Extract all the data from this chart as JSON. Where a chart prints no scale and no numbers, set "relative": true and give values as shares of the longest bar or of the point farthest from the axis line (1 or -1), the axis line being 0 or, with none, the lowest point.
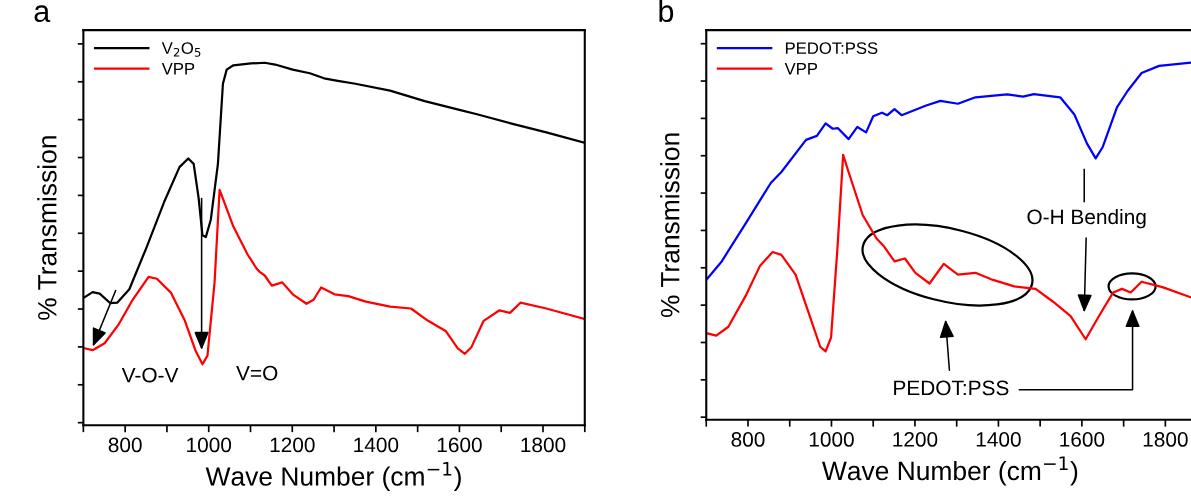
{
  "chart_data": [
    {
      "type": "line",
      "title": "a",
      "xlabel": "Wave Number (cm$^{−1}$)",
      "ylabel": "% Transmission",
      "relative": true,
      "xlim": [
        700,
        1900
      ],
      "xticks": [
        {
          "value": 700,
          "label": null
        },
        800,
        {
          "value": 900,
          "label": null
        },
        1000,
        {
          "value": 1100,
          "label": null
        },
        1200,
        {
          "value": 1300,
          "label": null
        },
        1400,
        {
          "value": 1500,
          "label": null
        },
        1600,
        {
          "value": 1700,
          "label": null
        },
        1800,
        {
          "value": 1900,
          "label": null
        }
      ],
      "legend": "top left",
      "grid": false,
      "series": [
        {
          "name": "V$_{2}$O$_{5}$",
          "color": "#000000",
          "x": [
            700,
            722,
            739,
            764,
            781,
            810,
            851,
            893,
            930,
            951,
            964,
            976,
            985,
            993,
            1005,
            1022,
            1034,
            1043,
            1059,
            1101,
            1134,
            1159,
            1201,
            1242,
            1276,
            1309,
            1351,
            1434,
            1517,
            1600,
            1642,
            1725,
            1808,
            1900
          ],
          "values": [
            0.351,
            0.367,
            0.363,
            0.337,
            0.338,
            0.375,
            0.49,
            0.615,
            0.712,
            0.736,
            0.721,
            0.625,
            0.524,
            0.519,
            0.567,
            0.721,
            0.942,
            0.981,
            0.993,
            0.998,
            1.0,
            0.995,
            0.981,
            0.971,
            0.957,
            0.95,
            0.942,
            0.923,
            0.894,
            0.87,
            0.858,
            0.832,
            0.808,
            0.779
          ]
        },
        {
          "name": "VPP",
          "color": "#ff0000",
          "x": [
            700,
            722,
            751,
            785,
            818,
            856,
            876,
            910,
            943,
            968,
            985,
            997,
            1014,
            1026,
            1034,
            1059,
            1093,
            1114,
            1122,
            1134,
            1151,
            1176,
            1201,
            1234,
            1251,
            1269,
            1301,
            1334,
            1376,
            1434,
            1484,
            1525,
            1567,
            1596,
            1613,
            1629,
            1658,
            1696,
            1721,
            1746,
            1808,
            1900
          ],
          "values": [
            0.213,
            0.207,
            0.226,
            0.279,
            0.346,
            0.409,
            0.404,
            0.365,
            0.288,
            0.207,
            0.168,
            0.192,
            0.394,
            0.649,
            0.625,
            0.548,
            0.471,
            0.433,
            0.423,
            0.413,
            0.385,
            0.394,
            0.361,
            0.335,
            0.346,
            0.38,
            0.361,
            0.356,
            0.341,
            0.327,
            0.322,
            0.288,
            0.26,
            0.212,
            0.197,
            0.216,
            0.288,
            0.317,
            0.31,
            0.338,
            0.322,
            0.293
          ]
        }
      ],
      "annotations": [
        {
          "text": "V-O-V",
          "x": 720,
          "y": 0.21
        },
        {
          "text": "V=O",
          "x": 983,
          "y": 0.2
        }
      ]
    },
    {
      "type": "line",
      "title": "b",
      "xlabel": "Wave Number (cm$^{−1}$)",
      "ylabel": "% Transmission",
      "relative": true,
      "xlim": [
        700,
        1870
      ],
      "xticks": [
        {
          "value": 700,
          "label": null
        },
        800,
        {
          "value": 900,
          "label": null
        },
        1000,
        {
          "value": 1100,
          "label": null
        },
        1200,
        {
          "value": 1300,
          "label": null
        },
        1400,
        {
          "value": 1500,
          "label": null
        },
        1600,
        {
          "value": 1700,
          "label": null
        },
        1800
      ],
      "legend": "top left",
      "grid": false,
      "series": [
        {
          "name": "PEDOT:PSS",
          "color": "#0000ff",
          "x": [
            700,
            736,
            796,
            855,
            880,
            939,
            965,
            986,
            1003,
            1015,
            1041,
            1062,
            1083,
            1100,
            1121,
            1134,
            1151,
            1168,
            1227,
            1261,
            1303,
            1345,
            1421,
            1459,
            1485,
            1548,
            1582,
            1612,
            1633,
            1650,
            1684,
            1709,
            1743,
            1785,
            1867
          ],
          "values": [
            0.391,
            0.441,
            0.552,
            0.663,
            0.693,
            0.783,
            0.794,
            0.829,
            0.814,
            0.816,
            0.785,
            0.819,
            0.804,
            0.849,
            0.859,
            0.852,
            0.869,
            0.852,
            0.879,
            0.892,
            0.884,
            0.902,
            0.91,
            0.904,
            0.911,
            0.902,
            0.854,
            0.773,
            0.731,
            0.763,
            0.874,
            0.919,
            0.97,
            0.99,
            1.0
          ]
        },
        {
          "name": "VPP",
          "color": "#ff0000",
          "x": [
            700,
            724,
            753,
            796,
            829,
            859,
            880,
            914,
            948,
            973,
            986,
            999,
            1015,
            1028,
            1041,
            1075,
            1108,
            1125,
            1151,
            1176,
            1201,
            1235,
            1269,
            1303,
            1345,
            1387,
            1438,
            1489,
            1531,
            1573,
            1609,
            1641,
            1675,
            1696,
            1717,
            1743,
            1793,
            1867
          ],
          "values": [
            0.242,
            0.235,
            0.26,
            0.35,
            0.431,
            0.469,
            0.461,
            0.406,
            0.29,
            0.204,
            0.191,
            0.23,
            0.491,
            0.741,
            0.693,
            0.572,
            0.507,
            0.486,
            0.443,
            0.451,
            0.411,
            0.381,
            0.436,
            0.406,
            0.411,
            0.391,
            0.373,
            0.366,
            0.33,
            0.29,
            0.225,
            0.29,
            0.356,
            0.366,
            0.356,
            0.386,
            0.371,
            0.34
          ]
        }
      ],
      "annotations": [
        "O-H Bending",
        "PEDOT:PSS"
      ]
    }
  ]
}
